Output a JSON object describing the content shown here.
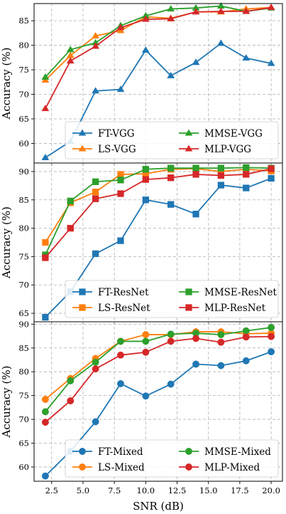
{
  "chart_data": [
    {
      "type": "line",
      "x": [
        2,
        4,
        6,
        8,
        10,
        12,
        14,
        16,
        18,
        20
      ],
      "ylabel": "Accuracy (%)",
      "ylim": [
        56,
        88.5
      ],
      "yticks": [
        60,
        65,
        70,
        75,
        80,
        85
      ],
      "marker": "triangle",
      "legend_position": "lower right",
      "series": [
        {
          "name": "FT-VGG",
          "color": "#1f77b4",
          "values": [
            57.1,
            60.4,
            70.7,
            71.0,
            79.0,
            73.8,
            76.5,
            80.4,
            77.4,
            76.3
          ]
        },
        {
          "name": "LS-VGG",
          "color": "#ff7f0e",
          "values": [
            72.9,
            77.9,
            81.9,
            83.0,
            85.8,
            85.5,
            86.8,
            86.8,
            87.4,
            87.7
          ]
        },
        {
          "name": "MMSE-VGG",
          "color": "#2ca02c",
          "values": [
            73.5,
            79.1,
            80.5,
            84.0,
            86.0,
            87.4,
            87.6,
            88.0,
            86.9,
            87.6
          ]
        },
        {
          "name": "MLP-VGG",
          "color": "#d62728",
          "values": [
            67.1,
            76.8,
            79.8,
            83.6,
            85.3,
            85.4,
            86.8,
            86.9,
            86.9,
            87.7
          ]
        }
      ],
      "grid": true
    },
    {
      "type": "line",
      "x": [
        2,
        4,
        6,
        8,
        10,
        12,
        14,
        16,
        18,
        20
      ],
      "ylabel": "Accuracy (%)",
      "ylim": [
        63.5,
        91.5
      ],
      "yticks": [
        65,
        70,
        75,
        80,
        85,
        90
      ],
      "marker": "square",
      "legend_position": "lower right",
      "series": [
        {
          "name": "FT-ResNet",
          "color": "#1f77b4",
          "values": [
            64.3,
            68.8,
            75.5,
            77.8,
            85.0,
            84.2,
            82.5,
            87.6,
            87.1,
            88.8
          ]
        },
        {
          "name": "LS-ResNet",
          "color": "#ff7f0e",
          "values": [
            77.5,
            84.5,
            86.4,
            89.5,
            89.6,
            90.4,
            90.5,
            90.0,
            90.4,
            90.1
          ]
        },
        {
          "name": "MMSE-ResNet",
          "color": "#2ca02c",
          "values": [
            75.3,
            84.8,
            88.2,
            88.5,
            90.4,
            90.6,
            90.6,
            90.6,
            90.7,
            90.6
          ]
        },
        {
          "name": "MLP-ResNet",
          "color": "#d62728",
          "values": [
            74.8,
            80.0,
            85.2,
            86.1,
            88.6,
            88.9,
            89.5,
            89.3,
            89.5,
            90.5
          ]
        }
      ],
      "grid": true
    },
    {
      "type": "line",
      "x": [
        2,
        4,
        6,
        8,
        10,
        12,
        14,
        16,
        18,
        20
      ],
      "ylabel": "Accuracy (%)",
      "xlabel": "SNR (dB)",
      "ylim": [
        57,
        90.5
      ],
      "yticks": [
        60,
        65,
        70,
        75,
        80,
        85,
        90
      ],
      "xticks": [
        2.5,
        5.0,
        7.5,
        10.0,
        12.5,
        15.0,
        17.5,
        20.0
      ],
      "marker": "circle",
      "legend_position": "lower right",
      "series": [
        {
          "name": "FT-Mixed",
          "color": "#1f77b4",
          "values": [
            58.1,
            63.3,
            69.5,
            77.5,
            74.9,
            77.4,
            81.6,
            81.3,
            82.3,
            84.2
          ]
        },
        {
          "name": "LS-Mixed",
          "color": "#ff7f0e",
          "values": [
            74.2,
            78.6,
            82.8,
            86.4,
            87.8,
            87.8,
            88.4,
            88.4,
            88.0,
            88.1
          ]
        },
        {
          "name": "MMSE-Mixed",
          "color": "#2ca02c",
          "values": [
            71.6,
            78.1,
            82.0,
            86.4,
            86.4,
            87.9,
            88.1,
            87.8,
            88.6,
            89.3
          ]
        },
        {
          "name": "MLP-Mixed",
          "color": "#d62728",
          "values": [
            69.4,
            73.9,
            80.6,
            83.5,
            84.1,
            86.4,
            87.0,
            86.2,
            87.3,
            87.4
          ]
        }
      ],
      "grid": true
    }
  ]
}
